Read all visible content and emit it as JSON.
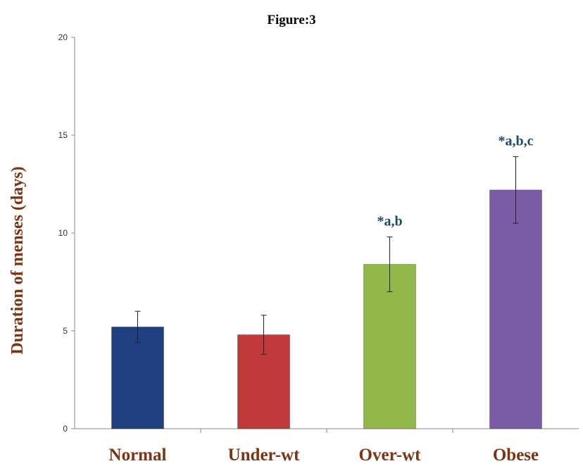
{
  "figure_title": "Figure:3",
  "chart_data": {
    "type": "bar",
    "title": "Figure:3",
    "xlabel": "",
    "ylabel": "Duration of menses (days)",
    "ylim": [
      0,
      20
    ],
    "yticks": [
      0,
      5,
      10,
      15,
      20
    ],
    "grid": false,
    "legend": "none",
    "categories": [
      "Normal",
      "Under-wt",
      "Over-wt",
      "Obese"
    ],
    "values": [
      5.2,
      4.8,
      8.4,
      12.2
    ],
    "error": [
      0.8,
      1.0,
      1.4,
      1.7
    ],
    "annotations": [
      "",
      "",
      "*a,b",
      "*a,b,c"
    ],
    "bar_colors": [
      "#1f3f7f",
      "#c0393b",
      "#92b84a",
      "#7b5ba6"
    ],
    "label_color": "#7b3512",
    "annotation_color": "#1c4d66"
  }
}
